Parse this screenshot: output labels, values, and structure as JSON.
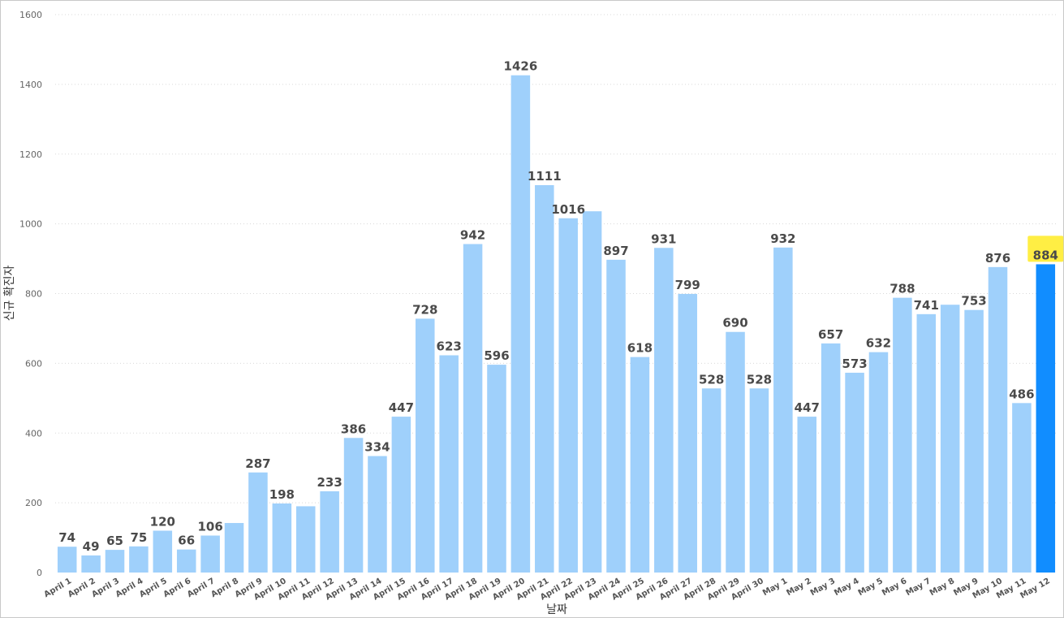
{
  "chart_data": {
    "type": "bar",
    "xlabel": "날짜",
    "ylabel": "신규 확진자",
    "ylim": [
      0,
      1600
    ],
    "yticks": [
      0,
      200,
      400,
      600,
      800,
      1000,
      1200,
      1400,
      1600
    ],
    "grid": true,
    "categories": [
      "April 1",
      "April 2",
      "April 3",
      "April 4",
      "April 5",
      "April 6",
      "April 7",
      "April 8",
      "April 9",
      "April 10",
      "April 11",
      "April 12",
      "April 13",
      "April 14",
      "April 15",
      "April 16",
      "April 17",
      "April 18",
      "April 19",
      "April 20",
      "April 21",
      "April 22",
      "April 23",
      "April 24",
      "April 25",
      "April 26",
      "April 27",
      "April 28",
      "April 29",
      "April 30",
      "May 1",
      "May 2",
      "May 3",
      "May 4",
      "May 5",
      "May 6",
      "May 7",
      "May 8",
      "May 9",
      "May 10",
      "May 11",
      "May 12"
    ],
    "values": [
      74,
      49,
      65,
      75,
      120,
      66,
      106,
      142,
      287,
      198,
      190,
      233,
      386,
      334,
      447,
      728,
      623,
      942,
      596,
      1426,
      1111,
      1016,
      1036,
      897,
      618,
      931,
      799,
      528,
      690,
      528,
      932,
      447,
      657,
      573,
      632,
      788,
      741,
      768,
      753,
      876,
      486,
      884
    ],
    "labels": [
      "74",
      "49",
      "65",
      "75",
      "120",
      "66",
      "106",
      "",
      "287",
      "198",
      "",
      "233",
      "386",
      "334",
      "447",
      "728",
      "623",
      "942",
      "596",
      "1426",
      "1111",
      "1016",
      "",
      "897",
      "618",
      "931",
      "799",
      "528",
      "690",
      "528",
      "932",
      "447",
      "657",
      "573",
      "632",
      "788",
      "741",
      "",
      "753",
      "876",
      "486",
      "884"
    ],
    "highlight_index": 41,
    "colors": {
      "bar": "#9fd0fb",
      "highlight_bar": "#118dff",
      "highlight_label_bg": "#ffee44",
      "gridline": "#d9d9d9"
    }
  }
}
